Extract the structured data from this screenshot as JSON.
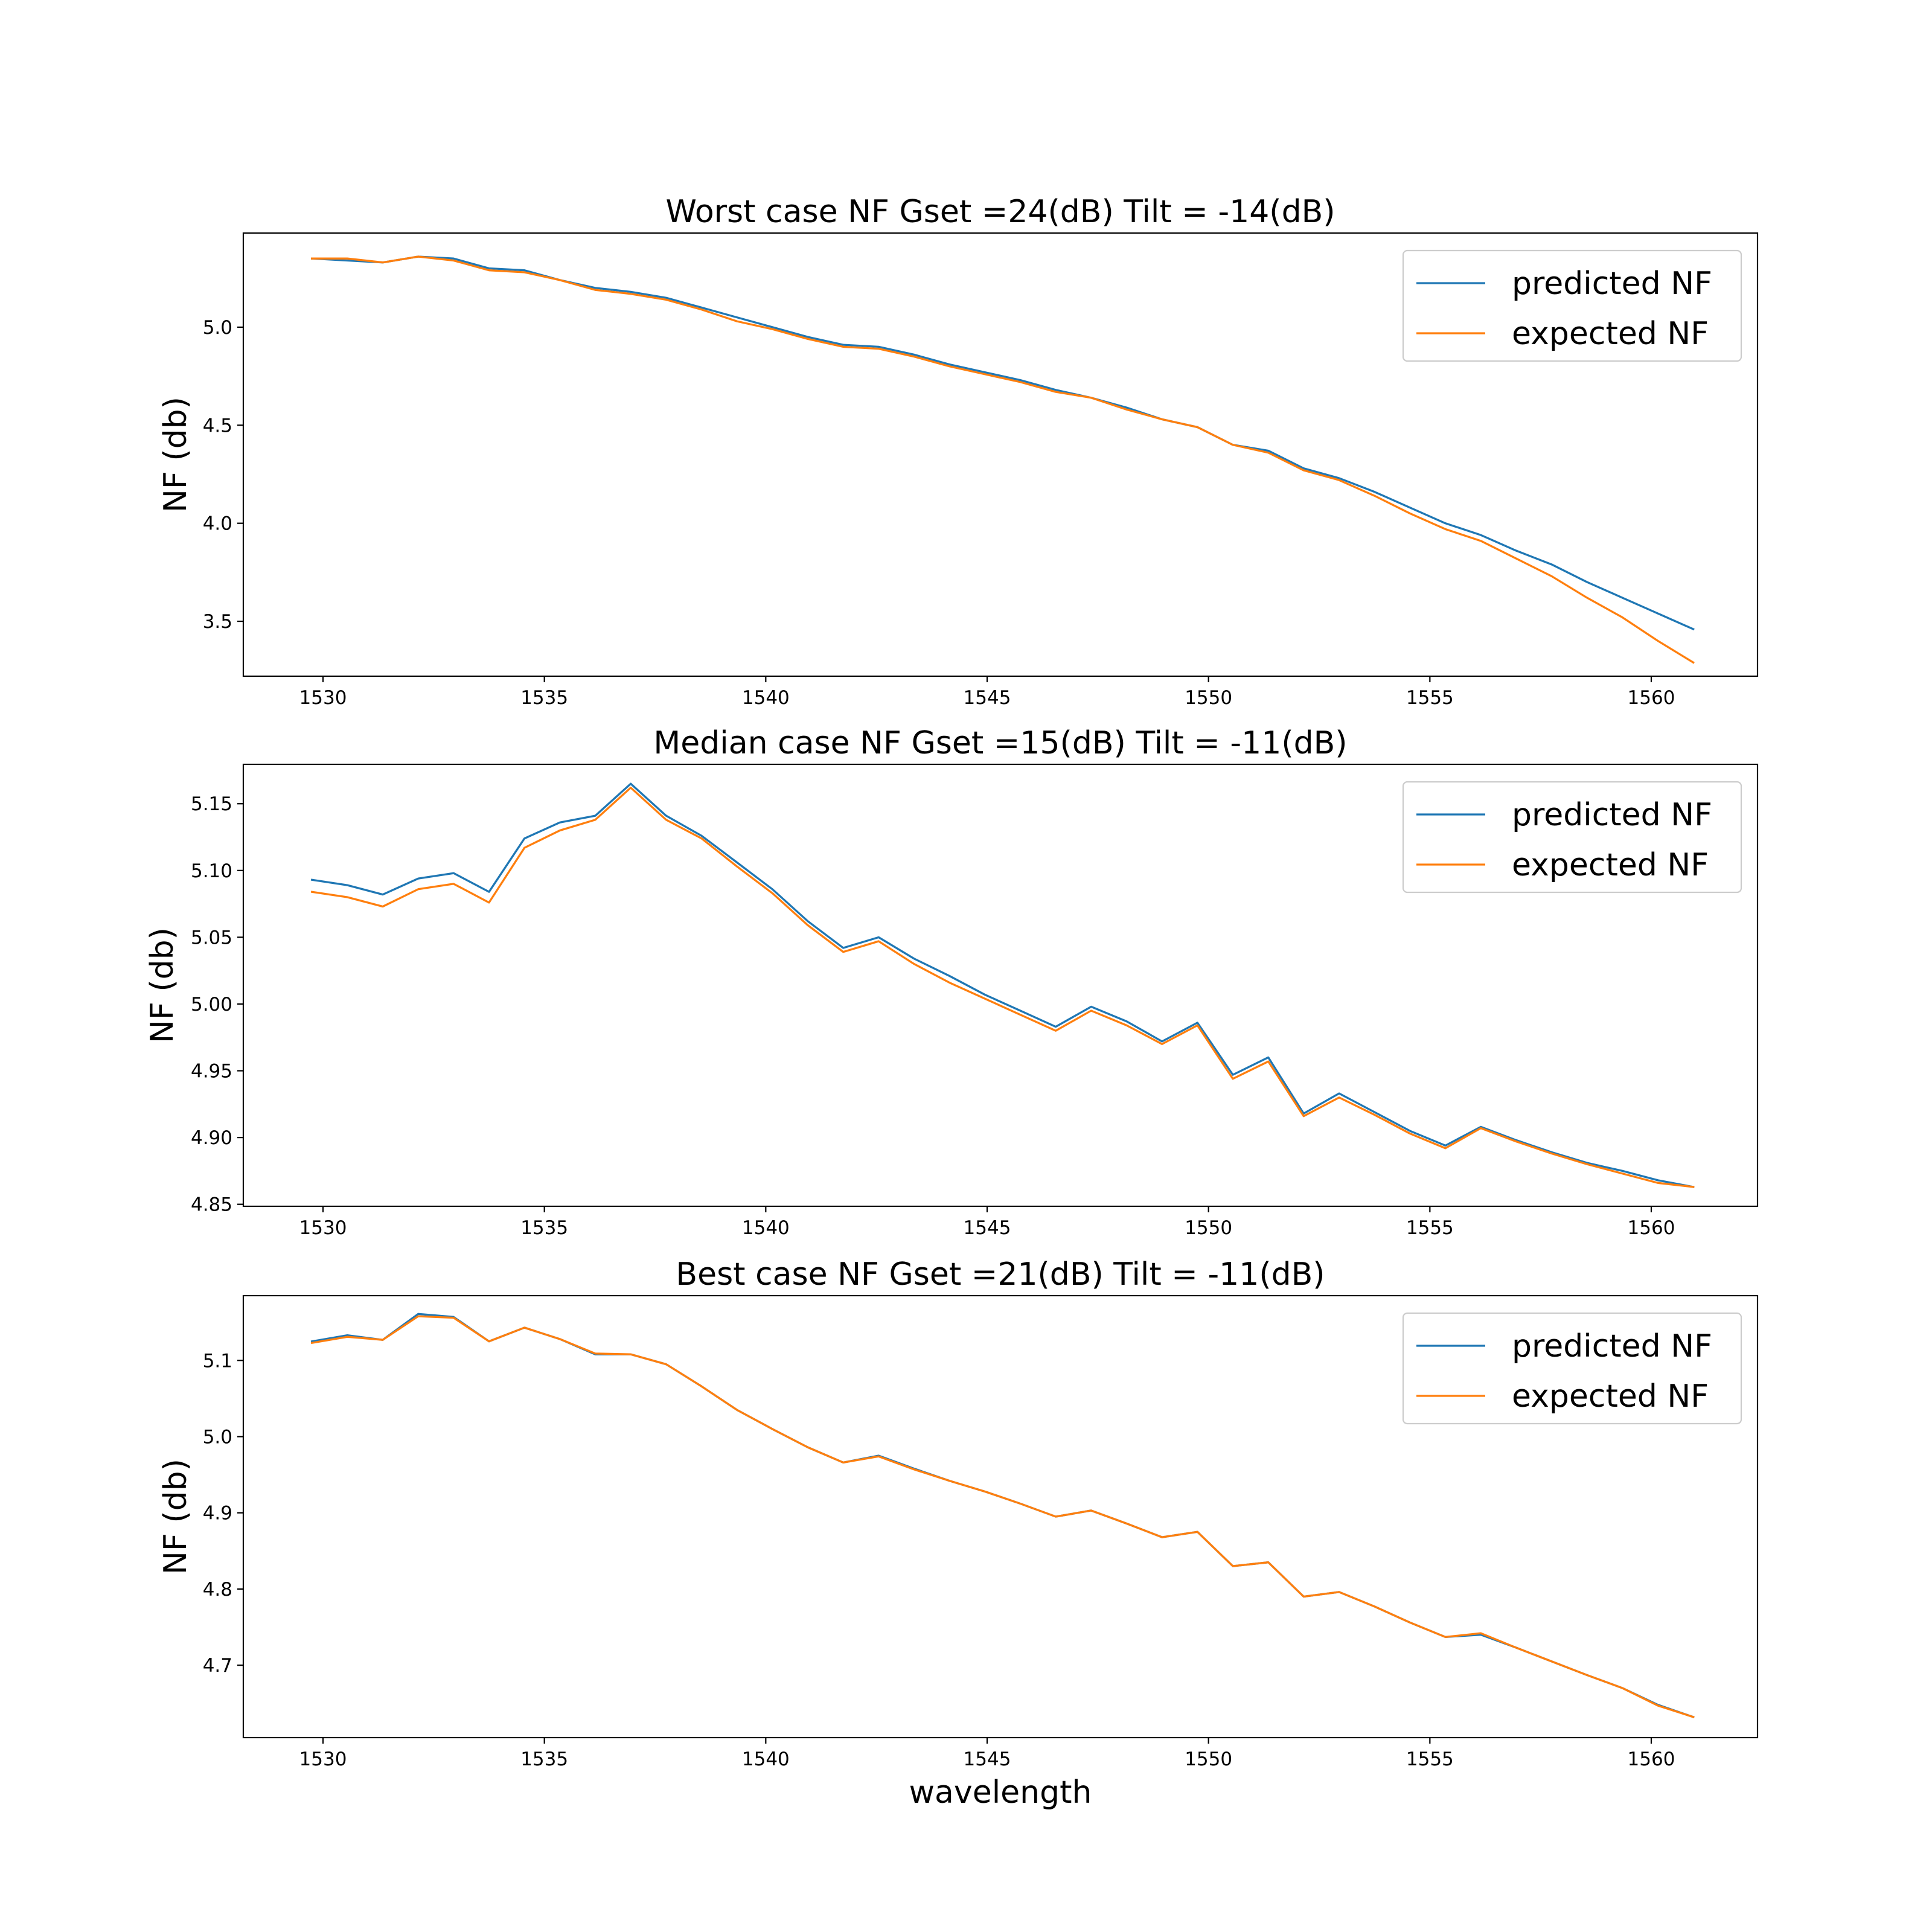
{
  "colors": {
    "predicted": "#1f77b4",
    "expected": "#ff7f0e"
  },
  "chart_data": [
    {
      "type": "line",
      "title": "Worst case NF Gset =24(dB) Tilt = -14(dB)",
      "xlabel": "",
      "ylabel": "NF (db)",
      "xlim": [
        1528.2,
        1562.4
      ],
      "ylim": [
        3.22,
        5.48
      ],
      "xticks": [
        1530,
        1535,
        1540,
        1545,
        1550,
        1555,
        1560
      ],
      "xtick_labels": [
        "1530",
        "1535",
        "1540",
        "1545",
        "1550",
        "1555",
        "1560"
      ],
      "yticks": [
        3.5,
        4.0,
        4.5,
        5.0
      ],
      "ytick_labels": [
        "3.5",
        "4.0",
        "4.5",
        "5.0"
      ],
      "legend": {
        "position": "upper right",
        "entries": [
          "predicted NF",
          "expected NF"
        ]
      },
      "x": [
        1529.75,
        1530.55,
        1531.35,
        1532.15,
        1532.95,
        1533.75,
        1534.55,
        1535.35,
        1536.15,
        1536.95,
        1537.75,
        1538.55,
        1539.35,
        1540.15,
        1540.95,
        1541.75,
        1542.55,
        1543.35,
        1544.15,
        1544.95,
        1545.75,
        1546.55,
        1547.35,
        1548.15,
        1548.95,
        1549.75,
        1550.55,
        1551.35,
        1552.15,
        1552.95,
        1553.75,
        1554.55,
        1555.35,
        1556.15,
        1556.95,
        1557.75,
        1558.55,
        1559.35,
        1560.15,
        1560.95
      ],
      "series": [
        {
          "name": "predicted NF",
          "color": "#1f77b4",
          "values": [
            5.35,
            5.34,
            5.33,
            5.36,
            5.35,
            5.3,
            5.29,
            5.24,
            5.2,
            5.18,
            5.15,
            5.1,
            5.05,
            5.0,
            4.95,
            4.91,
            4.9,
            4.86,
            4.81,
            4.77,
            4.73,
            4.68,
            4.64,
            4.59,
            4.53,
            4.49,
            4.4,
            4.37,
            4.28,
            4.23,
            4.16,
            4.08,
            4.0,
            3.94,
            3.86,
            3.79,
            3.7,
            3.62,
            3.54,
            3.46
          ]
        },
        {
          "name": "expected NF",
          "color": "#ff7f0e",
          "values": [
            5.35,
            5.35,
            5.33,
            5.36,
            5.34,
            5.29,
            5.28,
            5.24,
            5.19,
            5.17,
            5.14,
            5.09,
            5.03,
            4.99,
            4.94,
            4.9,
            4.89,
            4.85,
            4.8,
            4.76,
            4.72,
            4.67,
            4.64,
            4.58,
            4.53,
            4.49,
            4.4,
            4.36,
            4.27,
            4.22,
            4.14,
            4.05,
            3.97,
            3.91,
            3.82,
            3.73,
            3.62,
            3.52,
            3.4,
            3.29
          ]
        }
      ]
    },
    {
      "type": "line",
      "title": "Median case NF Gset =15(dB) Tilt = -11(dB)",
      "xlabel": "",
      "ylabel": "NF (db)",
      "xlim": [
        1528.2,
        1562.4
      ],
      "ylim": [
        4.8485,
        5.1795
      ],
      "xticks": [
        1530,
        1535,
        1540,
        1545,
        1550,
        1555,
        1560
      ],
      "xtick_labels": [
        "1530",
        "1535",
        "1540",
        "1545",
        "1550",
        "1555",
        "1560"
      ],
      "yticks": [
        4.85,
        4.9,
        4.95,
        5.0,
        5.05,
        5.1,
        5.15
      ],
      "ytick_labels": [
        "4.85",
        "4.90",
        "4.95",
        "5.00",
        "5.05",
        "5.10",
        "5.15"
      ],
      "legend": {
        "position": "upper right",
        "entries": [
          "predicted NF",
          "expected NF"
        ]
      },
      "x": [
        1529.75,
        1530.55,
        1531.35,
        1532.15,
        1532.95,
        1533.75,
        1534.55,
        1535.35,
        1536.15,
        1536.95,
        1537.75,
        1538.55,
        1539.35,
        1540.15,
        1540.95,
        1541.75,
        1542.55,
        1543.35,
        1544.15,
        1544.95,
        1545.75,
        1546.55,
        1547.35,
        1548.15,
        1548.95,
        1549.75,
        1550.55,
        1551.35,
        1552.15,
        1552.95,
        1553.75,
        1554.55,
        1555.35,
        1556.15,
        1556.95,
        1557.75,
        1558.55,
        1559.35,
        1560.15,
        1560.95
      ],
      "series": [
        {
          "name": "predicted NF",
          "color": "#1f77b4",
          "values": [
            5.093,
            5.089,
            5.082,
            5.094,
            5.098,
            5.084,
            5.124,
            5.136,
            5.141,
            5.165,
            5.141,
            5.126,
            5.106,
            5.086,
            5.062,
            5.042,
            5.05,
            5.034,
            5.021,
            5.007,
            4.995,
            4.983,
            4.998,
            4.987,
            4.972,
            4.986,
            4.947,
            4.96,
            4.918,
            4.933,
            4.919,
            4.905,
            4.894,
            4.908,
            4.898,
            4.889,
            4.881,
            4.875,
            4.868,
            4.863
          ]
        },
        {
          "name": "expected NF",
          "color": "#ff7f0e",
          "values": [
            5.084,
            5.08,
            5.073,
            5.086,
            5.09,
            5.076,
            5.117,
            5.13,
            5.138,
            5.162,
            5.138,
            5.124,
            5.103,
            5.083,
            5.059,
            5.039,
            5.047,
            5.03,
            5.016,
            5.004,
            4.992,
            4.98,
            4.995,
            4.984,
            4.97,
            4.984,
            4.944,
            4.957,
            4.916,
            4.93,
            4.917,
            4.903,
            4.892,
            4.907,
            4.897,
            4.888,
            4.88,
            4.873,
            4.866,
            4.863
          ]
        }
      ]
    },
    {
      "type": "line",
      "title": "Best case NF Gset =21(dB) Tilt = -11(dB)",
      "xlabel": "wavelength",
      "ylabel": "NF (db)",
      "xlim": [
        1528.2,
        1562.4
      ],
      "ylim": [
        4.605,
        5.185
      ],
      "xticks": [
        1530,
        1535,
        1540,
        1545,
        1550,
        1555,
        1560
      ],
      "xtick_labels": [
        "1530",
        "1535",
        "1540",
        "1545",
        "1550",
        "1555",
        "1560"
      ],
      "yticks": [
        4.7,
        4.8,
        4.9,
        5.0,
        5.1
      ],
      "ytick_labels": [
        "4.7",
        "4.8",
        "4.9",
        "5.0",
        "5.1"
      ],
      "legend": {
        "position": "upper right",
        "entries": [
          "predicted NF",
          "expected NF"
        ]
      },
      "x": [
        1529.75,
        1530.55,
        1531.35,
        1532.15,
        1532.95,
        1533.75,
        1534.55,
        1535.35,
        1536.15,
        1536.95,
        1537.75,
        1538.55,
        1539.35,
        1540.15,
        1540.95,
        1541.75,
        1542.55,
        1543.35,
        1544.15,
        1544.95,
        1545.75,
        1546.55,
        1547.35,
        1548.15,
        1548.95,
        1549.75,
        1550.55,
        1551.35,
        1552.15,
        1552.95,
        1553.75,
        1554.55,
        1555.35,
        1556.15,
        1556.95,
        1557.75,
        1558.55,
        1559.35,
        1560.15,
        1560.95
      ],
      "series": [
        {
          "name": "predicted NF",
          "color": "#1f77b4",
          "values": [
            5.125,
            5.133,
            5.127,
            5.161,
            5.157,
            5.125,
            5.143,
            5.128,
            5.108,
            5.108,
            5.095,
            5.066,
            5.035,
            5.01,
            4.986,
            4.966,
            4.975,
            4.958,
            4.942,
            4.928,
            4.912,
            4.895,
            4.903,
            4.886,
            4.868,
            4.875,
            4.83,
            4.835,
            4.79,
            4.796,
            4.777,
            4.756,
            4.737,
            4.74,
            4.723,
            4.705,
            4.687,
            4.67,
            4.648,
            4.632
          ]
        },
        {
          "name": "expected NF",
          "color": "#ff7f0e",
          "values": [
            5.123,
            5.131,
            5.127,
            5.158,
            5.156,
            5.125,
            5.143,
            5.128,
            5.109,
            5.108,
            5.095,
            5.066,
            5.035,
            5.01,
            4.986,
            4.966,
            4.974,
            4.957,
            4.942,
            4.928,
            4.912,
            4.895,
            4.903,
            4.886,
            4.868,
            4.875,
            4.83,
            4.835,
            4.79,
            4.796,
            4.777,
            4.756,
            4.737,
            4.742,
            4.723,
            4.705,
            4.687,
            4.67,
            4.647,
            4.632
          ]
        }
      ]
    }
  ]
}
